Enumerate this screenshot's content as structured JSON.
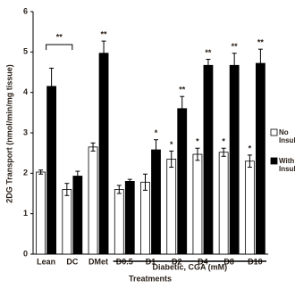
{
  "chart_data": {
    "type": "bar",
    "ylabel": "2DG Transport (nmol/min/mg tissue)",
    "xlabel": "Treatments",
    "group_label": "Diabetic, CGA (mM)",
    "bracket_label": "**",
    "categories": [
      "Lean",
      "DC",
      "DMet",
      "D0.5",
      "D1",
      "D2",
      "D4",
      "D8",
      "D10"
    ],
    "series": [
      {
        "name": "No Insulin",
        "color": "#ffffff",
        "values": [
          2.03,
          1.6,
          2.65,
          1.6,
          1.78,
          2.35,
          2.47,
          2.52,
          2.3
        ],
        "errors": [
          0.05,
          0.15,
          0.1,
          0.1,
          0.2,
          0.2,
          0.15,
          0.1,
          0.15
        ],
        "stars": [
          null,
          null,
          null,
          null,
          null,
          "*",
          "*",
          "*",
          "*"
        ]
      },
      {
        "name": "With Insulin",
        "color": "#000000",
        "values": [
          4.15,
          1.93,
          4.97,
          1.8,
          2.58,
          3.6,
          4.67,
          4.67,
          4.72
        ],
        "errors": [
          0.45,
          0.12,
          0.3,
          0.05,
          0.25,
          0.3,
          0.15,
          0.3,
          0.35
        ],
        "stars": [
          null,
          null,
          "**",
          null,
          "*",
          "**",
          "**",
          "**",
          "**"
        ]
      }
    ],
    "ylim": [
      0,
      6
    ],
    "yticks": [
      0,
      1,
      2,
      3,
      4,
      5,
      6
    ],
    "grid": false
  }
}
